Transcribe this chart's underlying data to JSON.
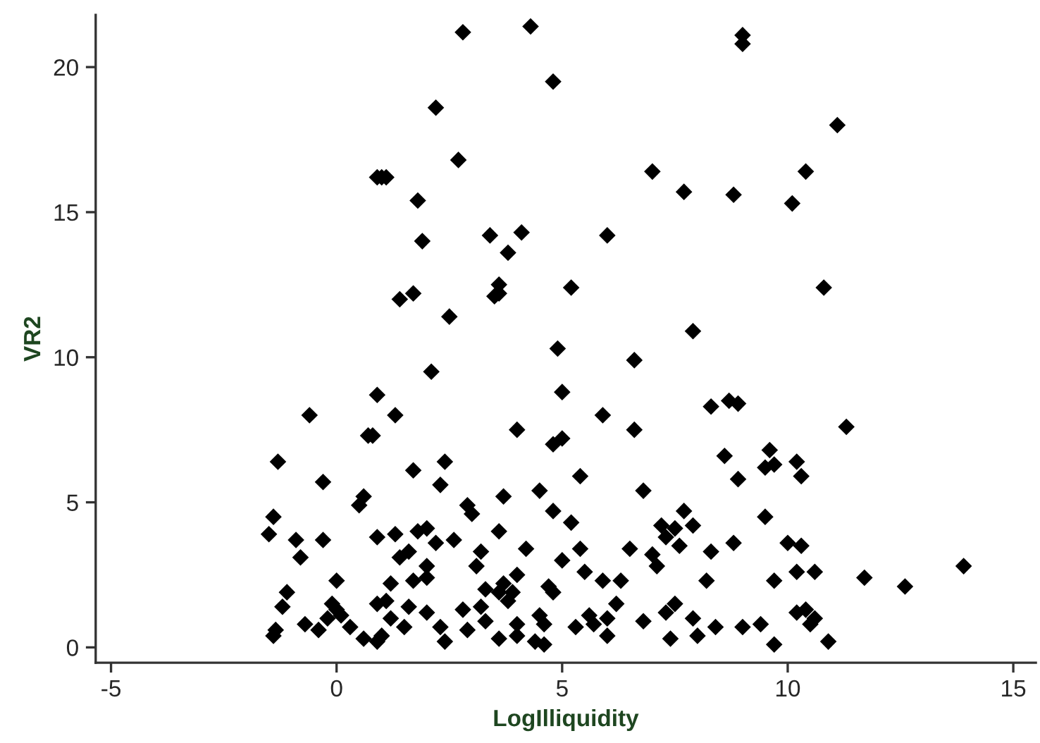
{
  "chart_data": {
    "type": "scatter",
    "xlabel": "LogIlliquidity",
    "ylabel": "VR2",
    "xlim": [
      -5.34,
      15.5
    ],
    "ylim": [
      -0.53,
      21.8
    ],
    "xticks": [
      -5,
      0,
      5,
      10,
      15
    ],
    "yticks": [
      0,
      5,
      10,
      15,
      20
    ],
    "grid": false,
    "marker": "diamond",
    "series": [
      {
        "color": "#000000",
        "x": [
          -1.5,
          -1.4,
          -1.3,
          -1.4,
          -1.35,
          -1.1,
          -1.2,
          -0.9,
          -0.8,
          -0.6,
          -0.7,
          -0.4,
          -0.3,
          -0.3,
          -0.2,
          -0.1,
          0.0,
          0.0,
          0.1,
          0.3,
          0.5,
          0.6,
          0.6,
          0.7,
          0.8,
          0.9,
          0.9,
          1.0,
          1.1,
          0.9,
          0.9,
          0.9,
          1.0,
          1.1,
          1.2,
          1.2,
          1.3,
          1.3,
          1.4,
          1.4,
          1.5,
          1.6,
          1.6,
          1.7,
          1.7,
          1.8,
          1.9,
          1.8,
          1.7,
          2.0,
          2.0,
          2.0,
          2.0,
          2.1,
          2.2,
          2.2,
          2.3,
          2.3,
          2.4,
          2.5,
          2.4,
          2.6,
          2.7,
          2.8,
          2.8,
          2.9,
          3.0,
          2.9,
          3.1,
          3.2,
          3.2,
          3.3,
          3.3,
          3.4,
          3.5,
          3.6,
          3.6,
          3.6,
          3.6,
          3.6,
          3.7,
          3.7,
          3.8,
          3.8,
          3.9,
          4.0,
          4.0,
          4.0,
          4.0,
          4.1,
          4.2,
          4.3,
          4.4,
          4.5,
          4.5,
          4.6,
          4.6,
          4.7,
          4.8,
          4.8,
          4.8,
          4.8,
          4.9,
          5.0,
          5.0,
          5.0,
          5.2,
          5.2,
          5.3,
          5.4,
          5.4,
          5.5,
          5.6,
          5.7,
          5.9,
          5.9,
          6.0,
          6.0,
          6.0,
          6.2,
          6.3,
          6.5,
          6.6,
          6.6,
          6.8,
          6.8,
          7.0,
          7.0,
          7.1,
          7.2,
          7.3,
          7.3,
          7.4,
          7.5,
          7.5,
          7.6,
          7.7,
          7.7,
          7.9,
          7.9,
          7.9,
          8.0,
          8.2,
          8.3,
          8.3,
          8.4,
          8.6,
          8.7,
          8.8,
          8.8,
          8.9,
          8.9,
          9.0,
          9.0,
          9.0,
          9.4,
          9.5,
          9.6,
          9.7,
          9.5,
          9.7,
          9.7,
          10.1,
          10.2,
          10.3,
          10.0,
          10.3,
          10.2,
          10.4,
          10.2,
          10.4,
          10.5,
          10.6,
          10.6,
          10.8,
          10.9,
          11.1,
          11.3,
          11.7,
          12.6,
          13.9
        ],
        "values": [
          3.9,
          4.5,
          6.4,
          0.4,
          0.6,
          1.9,
          1.4,
          3.7,
          3.1,
          8.0,
          0.8,
          0.6,
          5.7,
          3.7,
          1.0,
          1.5,
          2.3,
          1.3,
          1.1,
          0.7,
          4.9,
          0.3,
          5.2,
          7.3,
          7.3,
          8.7,
          16.2,
          16.2,
          16.2,
          3.8,
          1.5,
          0.2,
          0.4,
          1.6,
          2.2,
          1.0,
          8.0,
          3.9,
          12.0,
          3.1,
          0.7,
          1.4,
          3.3,
          12.2,
          6.1,
          15.4,
          14.0,
          4.0,
          2.3,
          4.1,
          2.8,
          2.4,
          1.2,
          9.5,
          18.6,
          3.6,
          5.6,
          0.7,
          6.4,
          11.4,
          0.2,
          3.7,
          16.8,
          21.2,
          1.3,
          4.9,
          4.6,
          0.6,
          2.8,
          3.3,
          1.4,
          0.9,
          2.0,
          14.2,
          12.1,
          12.2,
          12.5,
          4.0,
          0.3,
          1.9,
          2.2,
          5.2,
          13.6,
          1.6,
          1.9,
          2.5,
          0.8,
          0.4,
          7.5,
          14.3,
          3.4,
          21.4,
          0.2,
          5.4,
          1.1,
          0.1,
          0.8,
          2.1,
          19.5,
          7.0,
          4.7,
          1.9,
          10.3,
          8.8,
          7.2,
          3.0,
          12.4,
          4.3,
          0.7,
          5.9,
          3.4,
          2.6,
          1.1,
          0.8,
          8.0,
          2.3,
          14.2,
          1.0,
          0.4,
          1.5,
          2.3,
          3.4,
          9.9,
          7.5,
          5.4,
          0.9,
          16.4,
          3.2,
          2.8,
          4.2,
          3.8,
          1.2,
          0.3,
          4.1,
          1.5,
          3.5,
          15.7,
          4.7,
          10.9,
          4.2,
          1.0,
          0.4,
          2.3,
          8.3,
          3.3,
          0.7,
          6.6,
          8.5,
          15.6,
          3.6,
          8.4,
          5.8,
          21.1,
          20.8,
          0.7,
          0.8,
          6.2,
          6.8,
          6.3,
          4.5,
          2.3,
          0.1,
          15.3,
          6.4,
          5.9,
          3.6,
          3.5,
          2.6,
          16.4,
          1.2,
          1.3,
          0.8,
          1.0,
          2.6,
          12.4,
          0.2,
          18.0,
          7.6,
          2.4,
          2.1,
          2.8
        ]
      }
    ]
  }
}
